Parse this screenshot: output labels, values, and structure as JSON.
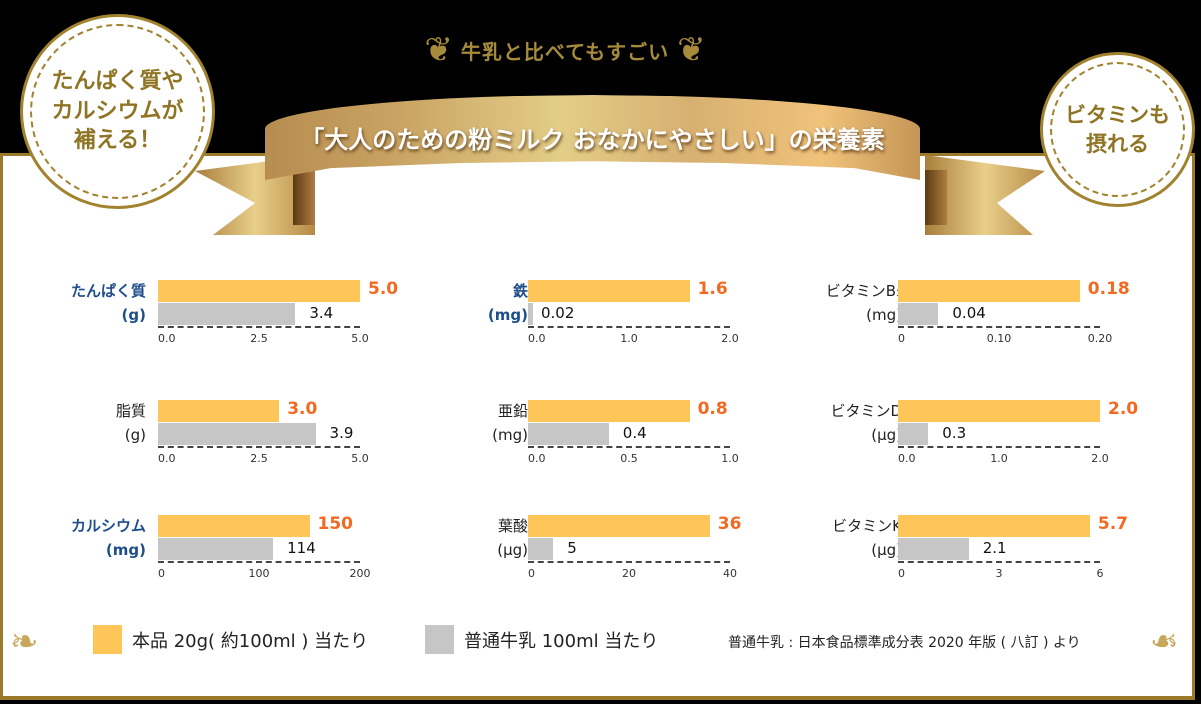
{
  "tagline": "牛乳と比べてもすごい",
  "ribbon_title": "「大人のための粉ミルク おなかにやさしい」の栄養素",
  "badges": {
    "left": "たんぱく質や\nカルシウムが\n補える！",
    "right": "ビタミンも\n摂れる"
  },
  "colors": {
    "product": "#fec659",
    "milk": "#c6c6c6",
    "product_value": "#f26a21",
    "highlight_label": "#1e4f8c",
    "gold": "#a0822f"
  },
  "legend": {
    "product": "本品 20g( 約100ml ) 当たり",
    "milk": "普通牛乳 100ml 当たり"
  },
  "source_note": "普通牛乳 : 日本食品標準成分表 2020 年版 ( 八訂 ) より",
  "chart_data": [
    {
      "type": "bar",
      "title": "たんぱく質",
      "unit": "(g)",
      "highlight": true,
      "categories": [
        "本品",
        "普通牛乳"
      ],
      "series": [
        {
          "name": "本品 20g( 約100ml ) 当たり",
          "values": [
            5.0
          ]
        },
        {
          "name": "普通牛乳 100ml 当たり",
          "values": [
            3.4
          ]
        }
      ],
      "product_label": "5.0",
      "milk_label": "3.4",
      "xlim": [
        0,
        5.0
      ],
      "ticks": [
        "0.0",
        "2.5",
        "5.0"
      ]
    },
    {
      "type": "bar",
      "title": "鉄",
      "unit": "(mg)",
      "highlight": true,
      "categories": [
        "本品",
        "普通牛乳"
      ],
      "series": [
        {
          "name": "本品 20g( 約100ml ) 当たり",
          "values": [
            1.6
          ]
        },
        {
          "name": "普通牛乳 100ml 当たり",
          "values": [
            0.02
          ]
        }
      ],
      "product_label": "1.6",
      "milk_label": "0.02",
      "xlim": [
        0,
        2.0
      ],
      "ticks": [
        "0.0",
        "1.0",
        "2.0"
      ]
    },
    {
      "type": "bar",
      "title": "ビタミンB₁",
      "unit": "(mg)",
      "highlight": false,
      "categories": [
        "本品",
        "普通牛乳"
      ],
      "series": [
        {
          "name": "本品 20g( 約100ml ) 当たり",
          "values": [
            0.18
          ]
        },
        {
          "name": "普通牛乳 100ml 当たり",
          "values": [
            0.04
          ]
        }
      ],
      "product_label": "0.18",
      "milk_label": "0.04",
      "xlim": [
        0,
        0.2
      ],
      "ticks": [
        "0",
        "0.10",
        "0.20"
      ]
    },
    {
      "type": "bar",
      "title": "脂質",
      "unit": "(g)",
      "highlight": false,
      "categories": [
        "本品",
        "普通牛乳"
      ],
      "series": [
        {
          "name": "本品 20g( 約100ml ) 当たり",
          "values": [
            3.0
          ]
        },
        {
          "name": "普通牛乳 100ml 当たり",
          "values": [
            3.9
          ]
        }
      ],
      "product_label": "3.0",
      "milk_label": "3.9",
      "xlim": [
        0,
        5.0
      ],
      "ticks": [
        "0.0",
        "2.5",
        "5.0"
      ]
    },
    {
      "type": "bar",
      "title": "亜鉛",
      "unit": "(mg)",
      "highlight": false,
      "categories": [
        "本品",
        "普通牛乳"
      ],
      "series": [
        {
          "name": "本品 20g( 約100ml ) 当たり",
          "values": [
            0.8
          ]
        },
        {
          "name": "普通牛乳 100ml 当たり",
          "values": [
            0.4
          ]
        }
      ],
      "product_label": "0.8",
      "milk_label": "0.4",
      "xlim": [
        0,
        1.0
      ],
      "ticks": [
        "0.0",
        "0.5",
        "1.0"
      ]
    },
    {
      "type": "bar",
      "title": "ビタミンD",
      "unit": "(µg)",
      "highlight": false,
      "categories": [
        "本品",
        "普通牛乳"
      ],
      "series": [
        {
          "name": "本品 20g( 約100ml ) 当たり",
          "values": [
            2.0
          ]
        },
        {
          "name": "普通牛乳 100ml 当たり",
          "values": [
            0.3
          ]
        }
      ],
      "product_label": "2.0",
      "milk_label": "0.3",
      "xlim": [
        0,
        2.0
      ],
      "ticks": [
        "0.0",
        "1.0",
        "2.0"
      ]
    },
    {
      "type": "bar",
      "title": "カルシウム",
      "unit": "(mg)",
      "highlight": true,
      "categories": [
        "本品",
        "普通牛乳"
      ],
      "series": [
        {
          "name": "本品 20g( 約100ml ) 当たり",
          "values": [
            150
          ]
        },
        {
          "name": "普通牛乳 100ml 当たり",
          "values": [
            114
          ]
        }
      ],
      "product_label": "150",
      "milk_label": "114",
      "xlim": [
        0,
        200
      ],
      "ticks": [
        "0",
        "100",
        "200"
      ]
    },
    {
      "type": "bar",
      "title": "葉酸",
      "unit": "(µg)",
      "highlight": false,
      "categories": [
        "本品",
        "普通牛乳"
      ],
      "series": [
        {
          "name": "本品 20g( 約100ml ) 当たり",
          "values": [
            36
          ]
        },
        {
          "name": "普通牛乳 100ml 当たり",
          "values": [
            5
          ]
        }
      ],
      "product_label": "36",
      "milk_label": "5",
      "xlim": [
        0,
        40
      ],
      "ticks": [
        "0",
        "20",
        "40"
      ]
    },
    {
      "type": "bar",
      "title": "ビタミンK",
      "unit": "(µg)",
      "highlight": false,
      "categories": [
        "本品",
        "普通牛乳"
      ],
      "series": [
        {
          "name": "本品 20g( 約100ml ) 当たり",
          "values": [
            5.7
          ]
        },
        {
          "name": "普通牛乳 100ml 当たり",
          "values": [
            2.1
          ]
        }
      ],
      "product_label": "5.7",
      "milk_label": "2.1",
      "xlim": [
        0,
        6
      ],
      "ticks": [
        "0",
        "3",
        "6"
      ]
    }
  ]
}
